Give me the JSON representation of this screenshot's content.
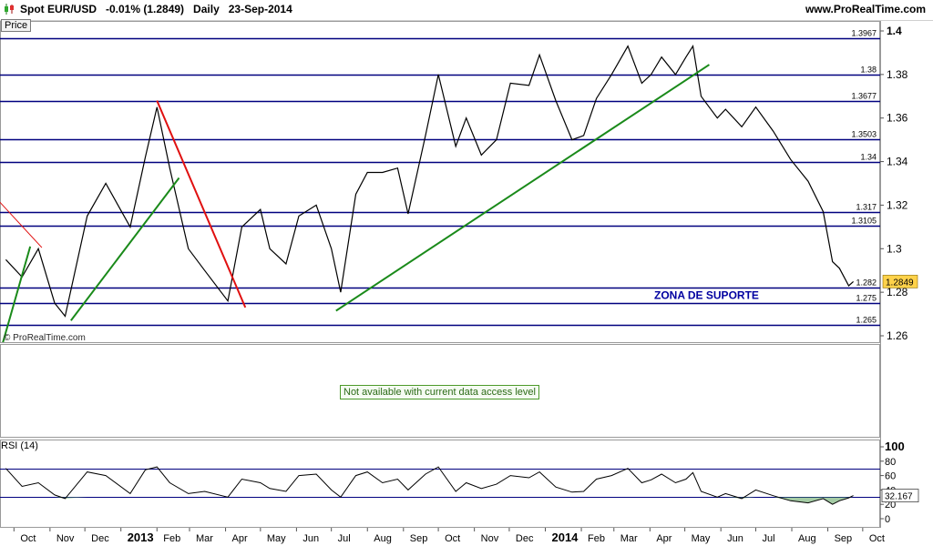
{
  "header": {
    "title": "Spot EUR/USD   -0.01% (1.2849)   Daily   23-Sep-2014",
    "website": "www.ProRealTime.com"
  },
  "price_panel": {
    "label": "Price",
    "watermark": "© ProRealTime.com",
    "support_zone_label": "ZONA DE SUPORTE",
    "current_price_label": "1.2849"
  },
  "volume_panel": {
    "message": "Not available with current data access level"
  },
  "rsi_panel": {
    "label": "RSI (14)",
    "current_value_label": "32.167"
  },
  "colors": {
    "price_line": "#000000",
    "level_line": "#00007f",
    "trendline_green": "#1a8a1a",
    "trendline_red": "#e01010",
    "current_price_badge": "#ffd24a",
    "support_zone_text": "#0000a0",
    "rsi_line": "#000000",
    "rsi_oversold_fill": "#5aa05a"
  },
  "chart_data": [
    {
      "type": "line",
      "title": "Spot EUR/USD Daily",
      "ylim": [
        1.255,
        1.405
      ],
      "yticks": [
        1.26,
        1.28,
        1.3,
        1.32,
        1.34,
        1.36,
        1.38,
        1.4
      ],
      "ytick_labels": [
        "1.26",
        "1.28",
        "1.3",
        "1.32",
        "1.34",
        "1.36",
        "1.38",
        "1.4"
      ],
      "x_labels": [
        "Oct",
        "Nov",
        "Dec",
        "2013",
        "Feb",
        "Mar",
        "Apr",
        "May",
        "Jun",
        "Jul",
        "Aug",
        "Sep",
        "Oct",
        "Nov",
        "Dec",
        "2014",
        "Feb",
        "Mar",
        "Apr",
        "May",
        "Jun",
        "Jul",
        "Aug",
        "Sep",
        "Oct"
      ],
      "bold_x_labels": [
        "2013",
        "2014"
      ],
      "series": [
        {
          "x": [
            "2012-09-24",
            "2012-10-08",
            "2012-10-22",
            "2012-11-05",
            "2012-11-14",
            "2012-12-03",
            "2012-12-19",
            "2013-01-09",
            "2013-01-22",
            "2013-02-01",
            "2013-02-12",
            "2013-02-28",
            "2013-03-14",
            "2013-04-03",
            "2013-04-15",
            "2013-05-01",
            "2013-05-09",
            "2013-05-23",
            "2013-06-03",
            "2013-06-18",
            "2013-07-01",
            "2013-07-09",
            "2013-07-22",
            "2013-08-01",
            "2013-08-14",
            "2013-08-27",
            "2013-09-05",
            "2013-09-20",
            "2013-10-01",
            "2013-10-16",
            "2013-10-25",
            "2013-11-07",
            "2013-11-20",
            "2013-12-02",
            "2013-12-18",
            "2013-12-27",
            "2014-01-10",
            "2014-01-24",
            "2014-02-03",
            "2014-02-14",
            "2014-02-27",
            "2014-03-13",
            "2014-03-25",
            "2014-04-02",
            "2014-04-11",
            "2014-04-23",
            "2014-05-02",
            "2014-05-08",
            "2014-05-15",
            "2014-05-29",
            "2014-06-05",
            "2014-06-19",
            "2014-07-01",
            "2014-07-16",
            "2014-07-31",
            "2014-08-15",
            "2014-08-28",
            "2014-09-05",
            "2014-09-11",
            "2014-09-19",
            "2014-09-23"
          ],
          "values": [
            1.295,
            1.287,
            1.3,
            1.275,
            1.269,
            1.315,
            1.33,
            1.31,
            1.342,
            1.365,
            1.337,
            1.3,
            1.29,
            1.276,
            1.31,
            1.318,
            1.3,
            1.293,
            1.315,
            1.32,
            1.3,
            1.28,
            1.325,
            1.335,
            1.335,
            1.337,
            1.316,
            1.352,
            1.38,
            1.347,
            1.36,
            1.343,
            1.35,
            1.376,
            1.375,
            1.389,
            1.368,
            1.35,
            1.352,
            1.369,
            1.38,
            1.393,
            1.376,
            1.38,
            1.388,
            1.38,
            1.388,
            1.393,
            1.37,
            1.36,
            1.364,
            1.356,
            1.365,
            1.354,
            1.341,
            1.331,
            1.317,
            1.294,
            1.291,
            1.283,
            1.2849
          ]
        }
      ],
      "horizontal_levels": [
        1.3967,
        1.38,
        1.3677,
        1.3503,
        1.34,
        1.317,
        1.3105,
        1.282,
        1.275,
        1.265
      ],
      "horizontal_level_labels": [
        "1.3967",
        "1.38",
        "1.3677",
        "1.3503",
        "1.34",
        "1.317",
        "1.3105",
        "1.282",
        "1.275",
        "1.265"
      ],
      "trendlines": [
        {
          "color": "green",
          "from": [
            "2012-09-21",
            1.256
          ],
          "to": [
            "2012-10-15",
            1.301
          ]
        },
        {
          "color": "green",
          "from": [
            "2012-11-19",
            1.267
          ],
          "to": [
            "2013-02-20",
            1.3325
          ]
        },
        {
          "color": "red",
          "from": [
            "2013-02-01",
            1.368
          ],
          "to": [
            "2013-04-18",
            1.273
          ]
        },
        {
          "color": "green",
          "from": [
            "2013-07-05",
            1.2715
          ],
          "to": [
            "2014-05-22",
            1.3845
          ]
        },
        {
          "color": "red",
          "from": [
            "2012-09-10",
            1.3265
          ],
          "to": [
            "2012-10-25",
            1.3005
          ]
        }
      ],
      "support_zone": {
        "label": "ZONA DE SUPORTE",
        "from": 1.275,
        "to": 1.282
      },
      "current_value": 1.2849
    },
    {
      "type": "line",
      "title": "RSI (14)",
      "ylim": [
        0,
        100
      ],
      "yticks": [
        0,
        20,
        40,
        60,
        80,
        100
      ],
      "ytick_labels": [
        "0",
        "20",
        "40",
        "60",
        "80",
        "100"
      ],
      "reference_levels": [
        30,
        70
      ],
      "series": [
        {
          "x": [
            "2012-09-24",
            "2012-10-08",
            "2012-10-22",
            "2012-11-05",
            "2012-11-14",
            "2012-12-03",
            "2012-12-19",
            "2013-01-09",
            "2013-01-22",
            "2013-02-01",
            "2013-02-12",
            "2013-02-28",
            "2013-03-14",
            "2013-04-03",
            "2013-04-15",
            "2013-05-01",
            "2013-05-09",
            "2013-05-23",
            "2013-06-03",
            "2013-06-18",
            "2013-07-01",
            "2013-07-09",
            "2013-07-22",
            "2013-08-01",
            "2013-08-14",
            "2013-08-27",
            "2013-09-05",
            "2013-09-20",
            "2013-10-01",
            "2013-10-16",
            "2013-10-25",
            "2013-11-07",
            "2013-11-20",
            "2013-12-02",
            "2013-12-18",
            "2013-12-27",
            "2014-01-10",
            "2014-01-24",
            "2014-02-03",
            "2014-02-14",
            "2014-02-27",
            "2014-03-13",
            "2014-03-25",
            "2014-04-02",
            "2014-04-11",
            "2014-04-23",
            "2014-05-02",
            "2014-05-08",
            "2014-05-15",
            "2014-05-29",
            "2014-06-05",
            "2014-06-19",
            "2014-07-01",
            "2014-07-16",
            "2014-07-31",
            "2014-08-15",
            "2014-08-28",
            "2014-09-05",
            "2014-09-11",
            "2014-09-19",
            "2014-09-23"
          ],
          "values": [
            70,
            45,
            50,
            33,
            28,
            65,
            60,
            35,
            68,
            72,
            50,
            35,
            38,
            30,
            55,
            50,
            42,
            38,
            60,
            62,
            40,
            30,
            60,
            65,
            50,
            55,
            40,
            62,
            72,
            38,
            50,
            42,
            48,
            60,
            57,
            65,
            44,
            37,
            38,
            55,
            60,
            70,
            50,
            54,
            62,
            50,
            55,
            64,
            38,
            30,
            35,
            28,
            40,
            32,
            25,
            22,
            28,
            20,
            25,
            29,
            32.167
          ]
        }
      ],
      "current_value": 32.167
    }
  ]
}
